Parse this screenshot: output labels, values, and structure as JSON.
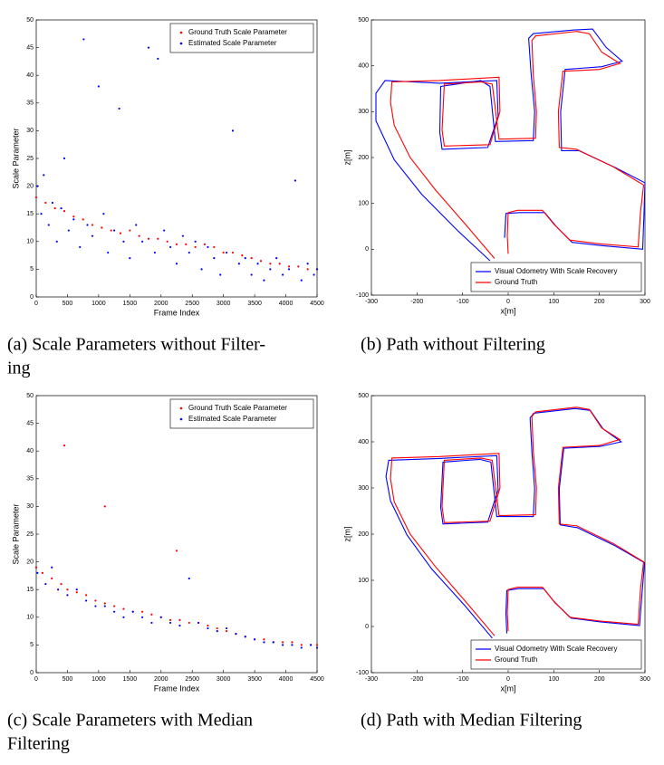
{
  "chart_data": [
    {
      "type": "scatter",
      "caption": [
        "(a) Scale Parameters without Filter-",
        "ing"
      ],
      "xlabel": "Frame Index",
      "ylabel": "Scale Parameter",
      "xlim": [
        0,
        4500
      ],
      "ylim": [
        0,
        50
      ],
      "xticks": [
        0,
        500,
        1000,
        1500,
        2000,
        2500,
        3000,
        3500,
        4000,
        4500
      ],
      "yticks": [
        0,
        5,
        10,
        15,
        20,
        25,
        30,
        35,
        40,
        45,
        50
      ],
      "legend": "upper right",
      "series": [
        {
          "name": "Ground Truth Scale Parameter",
          "color": "#ff0000",
          "x": [
            0,
            150,
            300,
            450,
            600,
            750,
            900,
            1050,
            1200,
            1350,
            1500,
            1650,
            1800,
            1950,
            2100,
            2250,
            2400,
            2550,
            2700,
            2850,
            3000,
            3150,
            3300,
            3450,
            3600,
            3750,
            3900,
            4050,
            4200,
            4350,
            4500
          ],
          "values": [
            18,
            17,
            16,
            15.5,
            14.5,
            14,
            13,
            12.5,
            12,
            11.5,
            12,
            11,
            10.5,
            10.5,
            10,
            9.5,
            9.5,
            9,
            9.5,
            9,
            8,
            8,
            7.5,
            7,
            6.5,
            6,
            6,
            5.5,
            5.5,
            5,
            5
          ]
        },
        {
          "name": "Estimated Scale Parameter",
          "color": "#0000ff",
          "x": [
            20,
            80,
            120,
            200,
            260,
            330,
            400,
            450,
            520,
            600,
            700,
            760,
            820,
            900,
            1000,
            1080,
            1150,
            1250,
            1330,
            1400,
            1500,
            1600,
            1700,
            1800,
            1900,
            1950,
            2050,
            2150,
            2250,
            2350,
            2450,
            2550,
            2650,
            2750,
            2850,
            2950,
            3050,
            3150,
            3250,
            3350,
            3450,
            3550,
            3650,
            3750,
            3850,
            3950,
            4050,
            4150,
            4250,
            4350,
            4450,
            4500
          ],
          "values": [
            20,
            15,
            22,
            13,
            17,
            10,
            16,
            25,
            12,
            14,
            9,
            46.5,
            13,
            11,
            38,
            15,
            8,
            12,
            34,
            10,
            7,
            13,
            10,
            45,
            8,
            43,
            12,
            9,
            6,
            11,
            8,
            10,
            5,
            9,
            7,
            4,
            8,
            30,
            6,
            7,
            4,
            6,
            3,
            5,
            7,
            4,
            5,
            21,
            3,
            6,
            4,
            5
          ]
        }
      ]
    },
    {
      "type": "line",
      "caption": [
        "(b) Path without Filtering"
      ],
      "xlabel": "x[m]",
      "ylabel": "z[m]",
      "xlim": [
        -300,
        300
      ],
      "ylim": [
        -100,
        500
      ],
      "xticks": [
        -300,
        -200,
        -100,
        0,
        100,
        200,
        300
      ],
      "yticks": [
        -100,
        0,
        100,
        200,
        300,
        400,
        500
      ],
      "legend": "lower right",
      "series": [
        {
          "name": "Visual Odometry With Scale Recovery",
          "color": "#0000ff",
          "x": [
            -40,
            -110,
            -190,
            -250,
            -290,
            -290,
            -270,
            -150,
            -25,
            -22,
            -45,
            -145,
            -150,
            -148,
            -60,
            -40,
            -28,
            55,
            58,
            50,
            45,
            55,
            145,
            185,
            215,
            250,
            205,
            125,
            115,
            117,
            155,
            235,
            300,
            298,
            295,
            205,
            140,
            105,
            80,
            25,
            -5,
            -8,
            -5
          ],
          "values": [
            -25,
            40,
            120,
            195,
            280,
            340,
            368,
            362,
            368,
            290,
            222,
            218,
            255,
            355,
            368,
            355,
            235,
            237,
            300,
            385,
            460,
            470,
            478,
            480,
            440,
            410,
            398,
            392,
            300,
            215,
            215,
            178,
            145,
            82,
            0,
            8,
            15,
            50,
            80,
            80,
            78,
            25,
            75
          ]
        },
        {
          "name": "Ground Truth",
          "color": "#ff0000",
          "x": [
            -30,
            -90,
            -160,
            -215,
            -250,
            -258,
            -255,
            -150,
            -20,
            -18,
            -40,
            -140,
            -145,
            -140,
            -60,
            -35,
            -20,
            60,
            62,
            55,
            52,
            60,
            150,
            178,
            205,
            245,
            200,
            120,
            110,
            112,
            150,
            230,
            297,
            290,
            285,
            200,
            135,
            100,
            75,
            20,
            0,
            -2,
            0
          ],
          "values": [
            -20,
            50,
            130,
            200,
            270,
            320,
            365,
            368,
            375,
            300,
            228,
            225,
            260,
            360,
            365,
            360,
            240,
            242,
            300,
            380,
            455,
            465,
            475,
            470,
            430,
            405,
            392,
            388,
            300,
            222,
            218,
            180,
            140,
            80,
            5,
            12,
            20,
            55,
            85,
            85,
            80,
            30,
            -10
          ]
        }
      ]
    },
    {
      "type": "scatter",
      "caption": [
        "(c) Scale Parameters with Median",
        "Filtering"
      ],
      "xlabel": "Frame Index",
      "ylabel": "Scale Parameter",
      "xlim": [
        0,
        4500
      ],
      "ylim": [
        0,
        50
      ],
      "xticks": [
        0,
        500,
        1000,
        1500,
        2000,
        2500,
        3000,
        3500,
        4000,
        4500
      ],
      "yticks": [
        0,
        5,
        10,
        15,
        20,
        25,
        30,
        35,
        40,
        45,
        50
      ],
      "legend": "upper right",
      "series": [
        {
          "name": "Ground Truth Scale Parameter",
          "color": "#ff0000",
          "x": [
            0,
            100,
            250,
            400,
            500,
            650,
            800,
            950,
            1100,
            1250,
            1400,
            1550,
            1700,
            1850,
            2000,
            2150,
            2300,
            2450,
            2600,
            2750,
            2900,
            3050,
            3200,
            3350,
            3500,
            3650,
            3800,
            3950,
            4100,
            4250,
            4400,
            4500,
            450,
            1100,
            2250
          ],
          "values": [
            19,
            18,
            17,
            16,
            15,
            14.5,
            14,
            13,
            12.5,
            12,
            11.5,
            11,
            11,
            10.5,
            10,
            9.5,
            9.5,
            9,
            9,
            8.5,
            8,
            7.5,
            7,
            6.5,
            6,
            6,
            5.5,
            5.5,
            5.5,
            5,
            5,
            5,
            41,
            30,
            22
          ]
        },
        {
          "name": "Estimated Scale Parameter",
          "color": "#0000ff",
          "x": [
            20,
            150,
            250,
            350,
            500,
            650,
            800,
            950,
            1100,
            1250,
            1400,
            1550,
            1700,
            1850,
            2000,
            2150,
            2300,
            2450,
            2600,
            2750,
            2900,
            3050,
            3200,
            3350,
            3500,
            3650,
            3800,
            3950,
            4100,
            4250,
            4400,
            4500
          ],
          "values": [
            18,
            16,
            19,
            15,
            14,
            15,
            13,
            12,
            12,
            11,
            10,
            11,
            10,
            9,
            10,
            9,
            8.5,
            17,
            9,
            8,
            7.5,
            8,
            7,
            6.5,
            6,
            5.5,
            5.5,
            5,
            5,
            4.5,
            5,
            4.5
          ]
        }
      ]
    },
    {
      "type": "line",
      "caption": [
        "(d) Path with Median Filtering"
      ],
      "xlabel": "x[m]",
      "ylabel": "z[m]",
      "xlim": [
        -300,
        300
      ],
      "ylim": [
        -100,
        500
      ],
      "xticks": [
        -300,
        -200,
        -100,
        0,
        100,
        200,
        300
      ],
      "yticks": [
        -100,
        0,
        100,
        200,
        300,
        400,
        500
      ],
      "legend": "lower right",
      "series": [
        {
          "name": "Visual Odometry With Scale Recovery",
          "color": "#0000ff",
          "x": [
            -35,
            -95,
            -168,
            -222,
            -258,
            -268,
            -262,
            -152,
            -25,
            -22,
            -45,
            -143,
            -148,
            -143,
            -62,
            -38,
            -25,
            55,
            58,
            52,
            48,
            56,
            146,
            180,
            208,
            248,
            202,
            122,
            112,
            114,
            152,
            232,
            299,
            294,
            288,
            202,
            138,
            102,
            78,
            22,
            -3,
            -5,
            -3
          ],
          "values": [
            -25,
            45,
            125,
            198,
            272,
            325,
            360,
            364,
            370,
            296,
            226,
            222,
            258,
            356,
            362,
            356,
            238,
            238,
            298,
            378,
            452,
            462,
            472,
            468,
            428,
            400,
            390,
            386,
            298,
            220,
            214,
            176,
            138,
            78,
            2,
            10,
            18,
            52,
            82,
            82,
            78,
            28,
            -15
          ]
        },
        {
          "name": "Ground Truth",
          "color": "#ff0000",
          "x": [
            -30,
            -90,
            -160,
            -215,
            -250,
            -258,
            -255,
            -150,
            -20,
            -18,
            -40,
            -140,
            -145,
            -140,
            -60,
            -35,
            -20,
            60,
            62,
            55,
            52,
            60,
            150,
            178,
            205,
            245,
            200,
            120,
            110,
            112,
            150,
            230,
            297,
            290,
            285,
            200,
            135,
            100,
            75,
            20,
            0,
            -2,
            0
          ],
          "values": [
            -20,
            50,
            130,
            200,
            270,
            320,
            365,
            368,
            375,
            300,
            228,
            225,
            260,
            360,
            365,
            360,
            240,
            242,
            300,
            380,
            455,
            465,
            475,
            470,
            430,
            405,
            392,
            388,
            300,
            222,
            218,
            180,
            140,
            80,
            5,
            12,
            20,
            55,
            85,
            85,
            80,
            30,
            -10
          ]
        }
      ]
    }
  ]
}
